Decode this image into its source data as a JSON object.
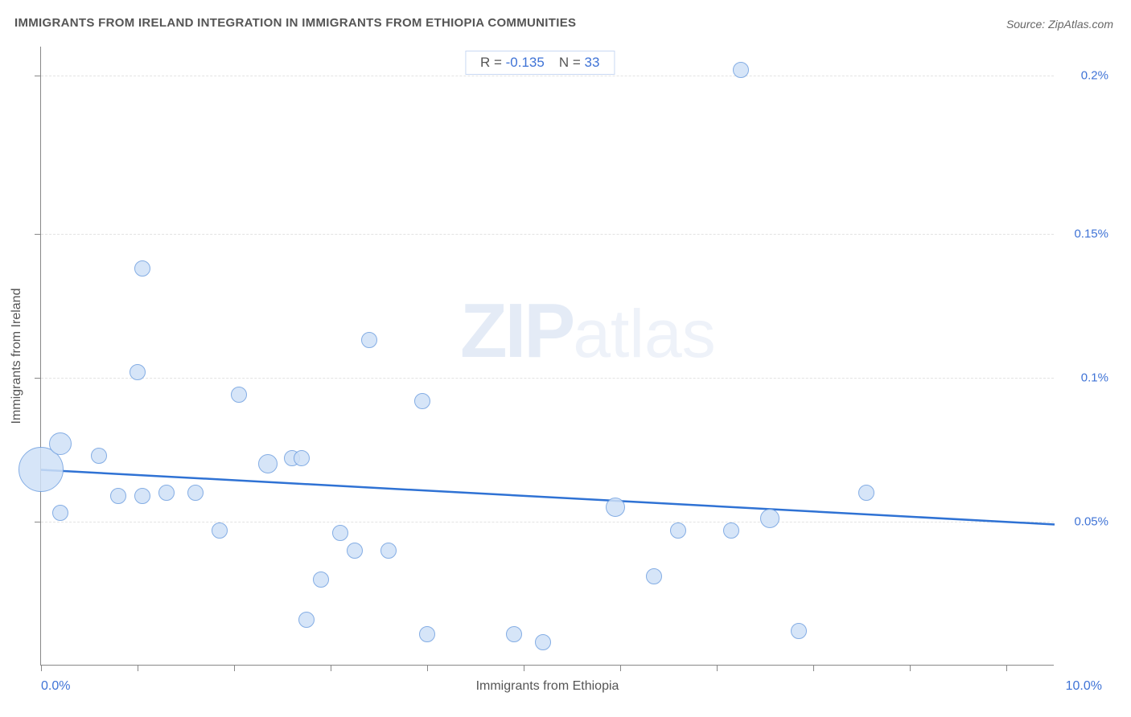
{
  "title": "IMMIGRANTS FROM IRELAND INTEGRATION IN IMMIGRANTS FROM ETHIOPIA COMMUNITIES",
  "source_label": "Source: ZipAtlas.com",
  "watermark": {
    "bold": "ZIP",
    "rest": "atlas"
  },
  "stats": {
    "r_label": "R =",
    "r_value": "-0.135",
    "n_label": "N =",
    "n_value": "33"
  },
  "chart": {
    "type": "scatter",
    "background": "#ffffff",
    "axis_color": "#888888",
    "grid_color": "#e3e3e3",
    "tick_label_color": "#3f73d6",
    "axis_label_color": "#555555",
    "point_fill": "#cfe1f7",
    "point_fill_alpha": 0.85,
    "point_stroke": "#6f9fe0",
    "trend_color": "#2f72d4",
    "trend_width": 2.5,
    "x_label": "Immigrants from Ethiopia",
    "y_label": "Immigrants from Ireland",
    "xlim": [
      0.0,
      10.5
    ],
    "ylim": [
      0.0,
      0.215
    ],
    "x_ticks_minor_step": 1.0,
    "y_gridlines": [
      0.05,
      0.1,
      0.15,
      0.205
    ],
    "y_tick_labels": [
      "0.05%",
      "0.1%",
      "0.15%",
      "0.2%"
    ],
    "x_range_left_label": "0.0%",
    "x_range_right_label": "10.0%",
    "default_radius": 10,
    "points": [
      {
        "x": 0.0,
        "y": 0.068,
        "r": 28
      },
      {
        "x": 0.2,
        "y": 0.077,
        "r": 14
      },
      {
        "x": 0.2,
        "y": 0.053,
        "r": 10
      },
      {
        "x": 0.6,
        "y": 0.073,
        "r": 10
      },
      {
        "x": 0.8,
        "y": 0.059,
        "r": 10
      },
      {
        "x": 1.05,
        "y": 0.138,
        "r": 10
      },
      {
        "x": 1.05,
        "y": 0.059,
        "r": 10
      },
      {
        "x": 1.0,
        "y": 0.102,
        "r": 10
      },
      {
        "x": 1.3,
        "y": 0.06,
        "r": 10
      },
      {
        "x": 1.6,
        "y": 0.06,
        "r": 10
      },
      {
        "x": 1.85,
        "y": 0.047,
        "r": 10
      },
      {
        "x": 2.05,
        "y": 0.094,
        "r": 10
      },
      {
        "x": 2.35,
        "y": 0.07,
        "r": 12
      },
      {
        "x": 2.6,
        "y": 0.072,
        "r": 10
      },
      {
        "x": 2.7,
        "y": 0.072,
        "r": 10
      },
      {
        "x": 2.75,
        "y": 0.016,
        "r": 10
      },
      {
        "x": 2.9,
        "y": 0.03,
        "r": 10
      },
      {
        "x": 3.1,
        "y": 0.046,
        "r": 10
      },
      {
        "x": 3.25,
        "y": 0.04,
        "r": 10
      },
      {
        "x": 3.4,
        "y": 0.113,
        "r": 10
      },
      {
        "x": 3.6,
        "y": 0.04,
        "r": 10
      },
      {
        "x": 3.95,
        "y": 0.092,
        "r": 10
      },
      {
        "x": 4.0,
        "y": 0.011,
        "r": 10
      },
      {
        "x": 4.9,
        "y": 0.011,
        "r": 10
      },
      {
        "x": 5.2,
        "y": 0.008,
        "r": 10
      },
      {
        "x": 5.95,
        "y": 0.055,
        "r": 12
      },
      {
        "x": 6.35,
        "y": 0.031,
        "r": 10
      },
      {
        "x": 6.6,
        "y": 0.047,
        "r": 10
      },
      {
        "x": 7.15,
        "y": 0.047,
        "r": 10
      },
      {
        "x": 7.25,
        "y": 0.207,
        "r": 10
      },
      {
        "x": 7.55,
        "y": 0.051,
        "r": 12
      },
      {
        "x": 7.85,
        "y": 0.012,
        "r": 10
      },
      {
        "x": 8.55,
        "y": 0.06,
        "r": 10
      }
    ],
    "trend": {
      "y_at_xmin": 0.068,
      "y_at_xmax": 0.049
    }
  }
}
